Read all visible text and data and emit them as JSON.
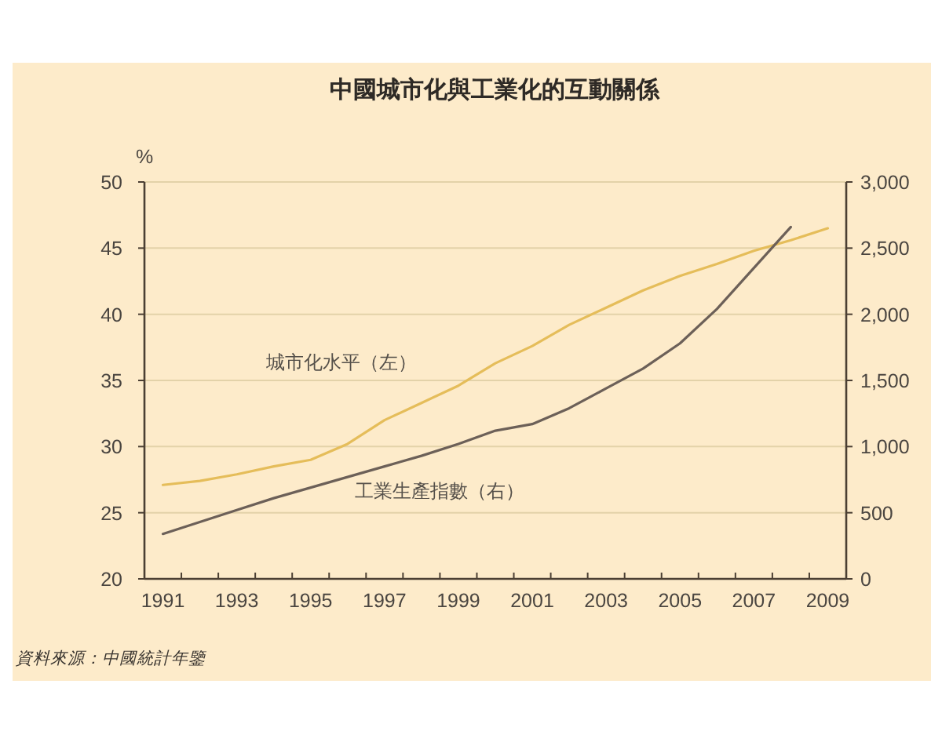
{
  "chart_data": {
    "type": "line",
    "title": "中國城市化與工業化的互動關係",
    "ylabel": "%",
    "x": [
      1991,
      1992,
      1993,
      1994,
      1995,
      1996,
      1997,
      1998,
      1999,
      2000,
      2001,
      2002,
      2003,
      2004,
      2005,
      2006,
      2007,
      2008,
      2009
    ],
    "xlim": [
      1990.5,
      2009.5
    ],
    "xticks": [
      1991,
      {
        "value": 1991.5,
        "label": null
      },
      {
        "value": 1992.5,
        "label": null
      },
      1993,
      {
        "value": 1993.5,
        "label": null
      },
      {
        "value": 1994.5,
        "label": null
      },
      1995,
      {
        "value": 1995.5,
        "label": null
      },
      {
        "value": 1996.5,
        "label": null
      },
      1997,
      {
        "value": 1997.5,
        "label": null
      },
      {
        "value": 1998.5,
        "label": null
      },
      1999,
      {
        "value": 1999.5,
        "label": null
      },
      {
        "value": 2000.5,
        "label": null
      },
      2001,
      {
        "value": 2001.5,
        "label": null
      },
      {
        "value": 2002.5,
        "label": null
      },
      2003,
      {
        "value": 2003.5,
        "label": null
      },
      {
        "value": 2004.5,
        "label": null
      },
      2005,
      {
        "value": 2005.5,
        "label": null
      },
      {
        "value": 2006.5,
        "label": null
      },
      2007,
      {
        "value": 2007.5,
        "label": null
      },
      {
        "value": 2008.5,
        "label": null
      },
      2009
    ],
    "ylim": [
      20,
      50
    ],
    "yticks": [
      20,
      25,
      30,
      35,
      40,
      45,
      50
    ],
    "y2lim": [
      0,
      3000
    ],
    "y2ticks": [
      0,
      500,
      {
        "value": 1000,
        "label": "1,000"
      },
      {
        "value": 1500,
        "label": "1,500"
      },
      {
        "value": 2000,
        "label": "2,000"
      },
      {
        "value": 2500,
        "label": "2,500"
      },
      {
        "value": 3000,
        "label": "3,000"
      }
    ],
    "grid": "y",
    "series": [
      {
        "name": "城市化水平（左）",
        "color": "#e5bd5a",
        "values": [
          27.1,
          27.4,
          27.9,
          28.5,
          29.0,
          30.2,
          32.0,
          33.3,
          34.6,
          36.3,
          37.6,
          39.2,
          40.5,
          41.8,
          42.9,
          43.8,
          44.8,
          45.6,
          46.5
        ]
      },
      {
        "name": "工業生產指數（右）",
        "color": "#6c6058",
        "axis": "y2",
        "values": [
          340,
          430,
          520,
          610,
          690,
          770,
          850,
          930,
          1020,
          1120,
          1170,
          1290,
          1440,
          1590,
          1780,
          2040,
          2350,
          2660,
          null
        ]
      }
    ],
    "annotations": [
      "資料來源：中國統計年鑒"
    ]
  }
}
